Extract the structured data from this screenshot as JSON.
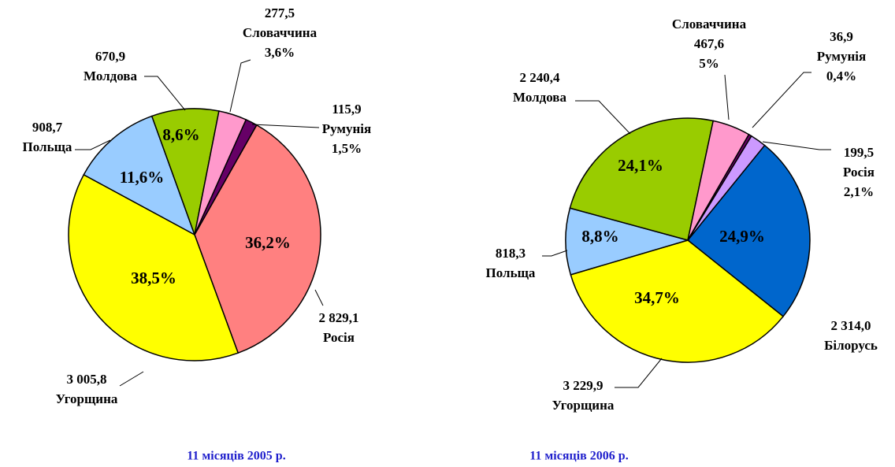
{
  "chart_data": [
    {
      "type": "pie",
      "title": "11 місяців 2005 р.",
      "categories": [
        "Росія",
        "Угорщина",
        "Польща",
        "Молдова",
        "Словаччина",
        "Румунія"
      ],
      "values": [
        36.2,
        38.5,
        11.6,
        8.6,
        3.6,
        1.5
      ],
      "value_labels": [
        "36,2%",
        "38,5%",
        "11,6%",
        "8,6%",
        "3,6%",
        "1,5%"
      ],
      "amounts": [
        2829.1,
        3005.8,
        908.7,
        670.9,
        277.5,
        115.9
      ],
      "amount_labels": [
        "2 829,1",
        "3 005,8",
        "908,7",
        "670,9",
        "277,5",
        "115,9"
      ],
      "colors": [
        "#ff8080",
        "#ffff00",
        "#99ccff",
        "#99cc00",
        "#ff99cc",
        "#660066"
      ]
    },
    {
      "type": "pie",
      "title": "11 місяців 2006 р.",
      "categories": [
        "Білорусь",
        "Угорщина",
        "Польща",
        "Молдова",
        "Словаччина",
        "Румунія",
        "Росія"
      ],
      "values": [
        24.9,
        34.7,
        8.8,
        24.1,
        5,
        0.4,
        2.1
      ],
      "value_labels": [
        "24,9%",
        "34,7%",
        "8,8%",
        "24,1%",
        "5%",
        "0,4%",
        "2,1%"
      ],
      "amounts": [
        2314.0,
        3229.9,
        818.3,
        2240.4,
        467.6,
        36.9,
        199.5
      ],
      "amount_labels": [
        "2 314,0",
        "3 229,9",
        "818,3",
        "2 240,4",
        "467,6",
        "36,9",
        "199,5"
      ],
      "colors": [
        "#0066cc",
        "#ffff00",
        "#99ccff",
        "#99cc00",
        "#ff99cc",
        "#660066",
        "#cc99ff"
      ]
    }
  ]
}
